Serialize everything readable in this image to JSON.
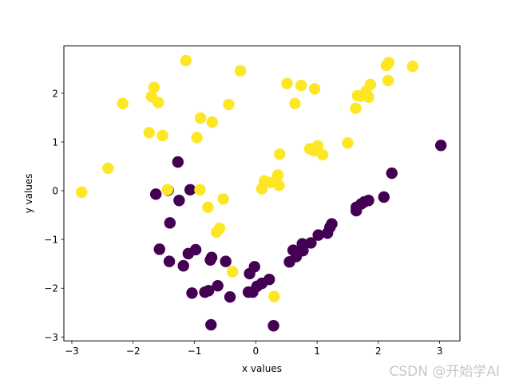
{
  "chart_data": {
    "type": "scatter",
    "title": "",
    "xlabel": "x values",
    "ylabel": "y values",
    "xlim": [
      -3.13,
      3.33
    ],
    "ylim": [
      -3.08,
      2.97
    ],
    "xticks": [
      -3,
      -2,
      -1,
      0,
      1,
      2,
      3
    ],
    "yticks": [
      -3,
      -2,
      -1,
      0,
      1,
      2
    ],
    "grid": false,
    "colors": {
      "class_0": "#440154",
      "class_1": "#fde725"
    },
    "series": [
      {
        "class": 0,
        "points": [
          [
            -1.63,
            -0.07
          ],
          [
            -1.43,
            0.01
          ],
          [
            -1.27,
            0.59
          ],
          [
            -1.25,
            -0.2
          ],
          [
            -1.4,
            -0.66
          ],
          [
            -1.07,
            0.02
          ],
          [
            -1.57,
            -1.2
          ],
          [
            -1.41,
            -1.45
          ],
          [
            -1.18,
            -1.54
          ],
          [
            -1.1,
            -1.29
          ],
          [
            -0.98,
            -1.21
          ],
          [
            -0.74,
            -1.42
          ],
          [
            -0.72,
            -1.37
          ],
          [
            -0.62,
            -1.95
          ],
          [
            -0.49,
            -1.45
          ],
          [
            -0.42,
            -2.18
          ],
          [
            -0.83,
            -2.08
          ],
          [
            -0.77,
            -2.05
          ],
          [
            -1.04,
            -2.1
          ],
          [
            -0.73,
            -2.75
          ],
          [
            -0.1,
            -1.7
          ],
          [
            -0.02,
            -1.56
          ],
          [
            -0.05,
            -2.08
          ],
          [
            -0.12,
            -2.08
          ],
          [
            0.02,
            -1.96
          ],
          [
            0.1,
            -1.9
          ],
          [
            0.22,
            -1.82
          ],
          [
            0.29,
            -2.77
          ],
          [
            0.55,
            -1.46
          ],
          [
            0.61,
            -1.22
          ],
          [
            0.66,
            -1.35
          ],
          [
            0.76,
            -1.09
          ],
          [
            0.77,
            -1.23
          ],
          [
            0.9,
            -1.07
          ],
          [
            1.02,
            -0.91
          ],
          [
            1.17,
            -0.87
          ],
          [
            1.21,
            -0.75
          ],
          [
            1.24,
            -0.68
          ],
          [
            1.64,
            -0.41
          ],
          [
            1.64,
            -0.34
          ],
          [
            1.72,
            -0.27
          ],
          [
            1.77,
            -0.23
          ],
          [
            1.84,
            -0.2
          ],
          [
            2.09,
            -0.13
          ],
          [
            2.22,
            0.36
          ],
          [
            3.02,
            0.93
          ]
        ]
      },
      {
        "class": 1,
        "points": [
          [
            -2.84,
            -0.03
          ],
          [
            -2.41,
            0.46
          ],
          [
            -2.17,
            1.79
          ],
          [
            -1.74,
            1.19
          ],
          [
            -1.7,
            1.93
          ],
          [
            -1.66,
            2.12
          ],
          [
            -1.59,
            1.81
          ],
          [
            -1.52,
            1.13
          ],
          [
            -1.44,
            0.02
          ],
          [
            -1.14,
            2.67
          ],
          [
            -0.96,
            1.09
          ],
          [
            -0.9,
            1.49
          ],
          [
            -0.91,
            0.02
          ],
          [
            -0.78,
            -0.34
          ],
          [
            -0.71,
            1.41
          ],
          [
            -0.64,
            -0.85
          ],
          [
            -0.59,
            -0.77
          ],
          [
            -0.53,
            -0.17
          ],
          [
            -0.44,
            1.77
          ],
          [
            -0.38,
            -1.66
          ],
          [
            -0.25,
            2.46
          ],
          [
            0.1,
            0.04
          ],
          [
            0.14,
            0.2
          ],
          [
            0.24,
            0.17
          ],
          [
            0.3,
            -2.17
          ],
          [
            0.36,
            0.32
          ],
          [
            0.38,
            0.11
          ],
          [
            0.39,
            0.75
          ],
          [
            0.51,
            2.2
          ],
          [
            0.64,
            1.79
          ],
          [
            0.74,
            2.16
          ],
          [
            0.88,
            0.86
          ],
          [
            0.95,
            0.82
          ],
          [
            0.96,
            2.09
          ],
          [
            1.01,
            0.92
          ],
          [
            1.09,
            0.74
          ],
          [
            1.5,
            0.98
          ],
          [
            1.63,
            1.69
          ],
          [
            1.66,
            1.95
          ],
          [
            1.72,
            1.94
          ],
          [
            1.8,
            2.04
          ],
          [
            1.84,
            1.92
          ],
          [
            1.87,
            2.18
          ],
          [
            2.13,
            2.57
          ],
          [
            2.16,
            2.26
          ],
          [
            2.17,
            2.63
          ],
          [
            2.56,
            2.55
          ]
        ]
      }
    ]
  },
  "watermark": "CSDN @开始学AI"
}
